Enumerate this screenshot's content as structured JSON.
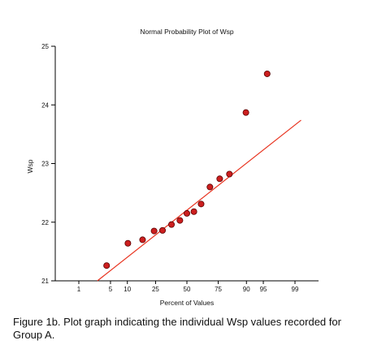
{
  "chart_data": {
    "type": "scatter",
    "title": "Normal Probability Plot of Wsp",
    "xlabel": "Percent of Values",
    "ylabel": "Wsp",
    "xscale": "normal-probability",
    "xticks": [
      1,
      5,
      10,
      25,
      50,
      75,
      90,
      95,
      99
    ],
    "ylim": [
      21,
      25
    ],
    "yticks": [
      21,
      22,
      23,
      24,
      25
    ],
    "grid": false,
    "series": [
      {
        "marker": "circle",
        "x_percent": [
          4.2,
          10.2,
          17,
          24,
          30,
          37,
          44,
          50,
          56,
          62,
          69,
          76,
          82,
          89.8,
          95.8
        ],
        "values": [
          21.26,
          21.64,
          21.7,
          21.85,
          21.86,
          21.96,
          22.03,
          22.15,
          22.18,
          22.31,
          22.6,
          22.74,
          22.82,
          23.87,
          24.53
        ]
      }
    ],
    "reference_line": {
      "x_percent": [
        2.7,
        99.3
      ],
      "values": [
        21.0,
        23.74
      ]
    },
    "colors": {
      "point_fill": "#cc1f1f",
      "point_stroke": "#5a0000",
      "line": "#e8321e",
      "axis": "#000000",
      "text": "#111111"
    }
  },
  "caption": "Figure 1b. Plot graph indicating the individual Wsp values recorded for Group A."
}
